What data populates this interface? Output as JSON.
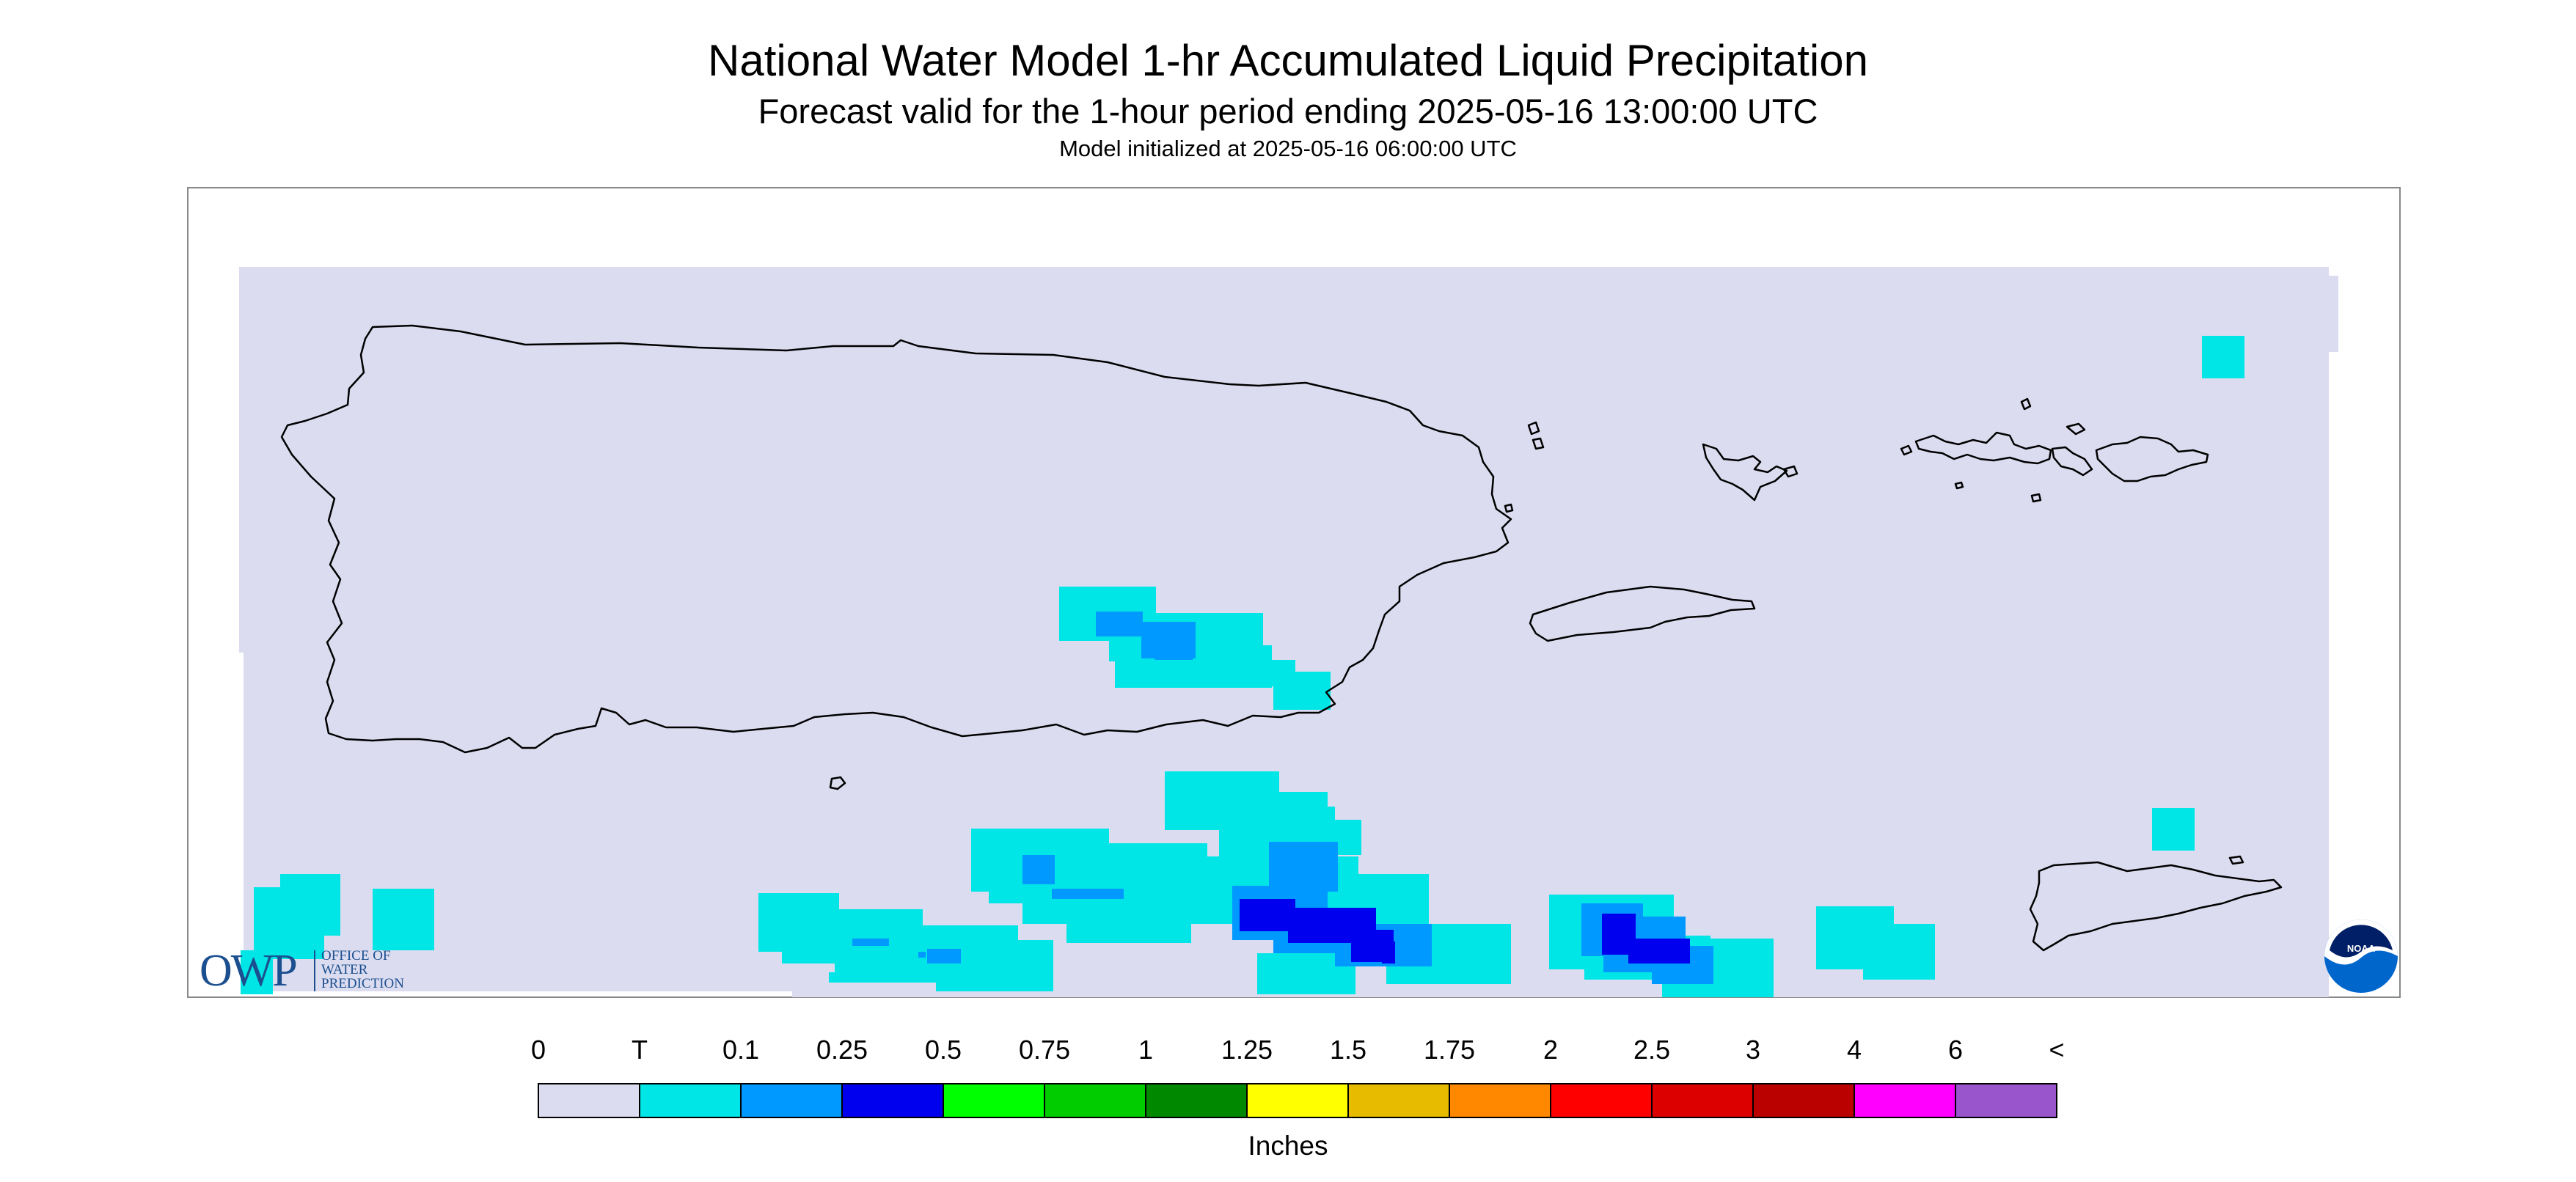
{
  "header": {
    "title": "National Water Model 1-hr Accumulated Liquid Precipitation",
    "subtitle": "Forecast valid for the 1-hour period ending 2025-05-16 13:00:00 UTC",
    "init_line": "Model initialized at 2025-05-16 06:00:00 UTC"
  },
  "map": {
    "region": "Puerto Rico and U.S. Virgin Islands",
    "background_color": "#dcdcf0",
    "coastline_color": "#000000"
  },
  "legend": {
    "units_label": "Inches",
    "labels": [
      "0",
      "T",
      "0.1",
      "0.25",
      "0.5",
      "0.75",
      "1",
      "1.25",
      "1.5",
      "1.75",
      "2",
      "2.5",
      "3",
      "4",
      "6",
      "<"
    ],
    "colors": [
      "#dcdcf0",
      "#00e6e6",
      "#0099ff",
      "#0000ee",
      "#00ff00",
      "#00cc00",
      "#008800",
      "#ffff00",
      "#e6bb00",
      "#ff8800",
      "#ff0000",
      "#dd0000",
      "#bb0000",
      "#ff00ff",
      "#9955cc"
    ]
  },
  "logos": {
    "owp_mark": "OWP",
    "owp_line1": "OFFICE OF",
    "owp_line2": "WATER",
    "owp_line3": "PREDICTION",
    "noaa_text": "NOAA"
  }
}
